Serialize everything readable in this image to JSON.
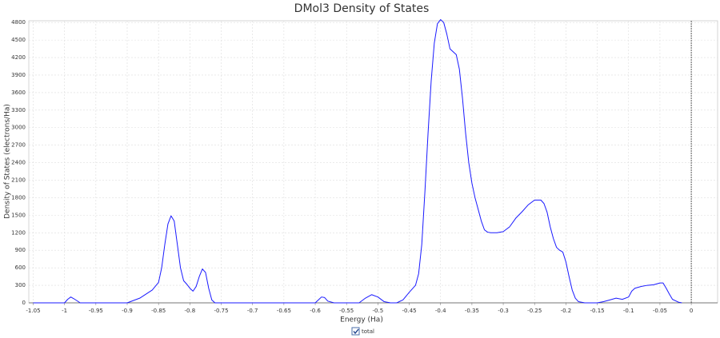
{
  "chart_data": {
    "type": "line",
    "title": "DMol3 Density of States",
    "x_label": "Energy (Ha)",
    "y_label": "Density of States (electrons/Ha)",
    "x": [
      -1.05,
      -1.0,
      -0.995,
      -0.99,
      -0.985,
      -0.975,
      -0.9,
      -0.88,
      -0.87,
      -0.86,
      -0.85,
      -0.845,
      -0.84,
      -0.835,
      -0.83,
      -0.825,
      -0.82,
      -0.815,
      -0.81,
      -0.805,
      -0.8,
      -0.795,
      -0.79,
      -0.785,
      -0.78,
      -0.775,
      -0.77,
      -0.765,
      -0.76,
      -0.6,
      -0.595,
      -0.59,
      -0.585,
      -0.58,
      -0.57,
      -0.53,
      -0.52,
      -0.51,
      -0.5,
      -0.49,
      -0.48,
      -0.47,
      -0.46,
      -0.45,
      -0.44,
      -0.435,
      -0.43,
      -0.425,
      -0.42,
      -0.415,
      -0.41,
      -0.405,
      -0.4,
      -0.395,
      -0.39,
      -0.385,
      -0.38,
      -0.375,
      -0.37,
      -0.365,
      -0.36,
      -0.355,
      -0.35,
      -0.345,
      -0.34,
      -0.335,
      -0.33,
      -0.325,
      -0.32,
      -0.31,
      -0.3,
      -0.29,
      -0.28,
      -0.27,
      -0.26,
      -0.25,
      -0.24,
      -0.235,
      -0.23,
      -0.225,
      -0.22,
      -0.215,
      -0.21,
      -0.205,
      -0.2,
      -0.195,
      -0.19,
      -0.185,
      -0.18,
      -0.17,
      -0.15,
      -0.14,
      -0.13,
      -0.12,
      -0.11,
      -0.1,
      -0.095,
      -0.09,
      -0.08,
      -0.07,
      -0.06,
      -0.05,
      -0.045,
      -0.04,
      -0.035,
      -0.03,
      -0.02,
      -0.015
    ],
    "series": [
      {
        "name": "total",
        "color": "#1a1aff",
        "values": [
          0,
          0,
          60,
          100,
          70,
          0,
          0,
          80,
          150,
          220,
          350,
          600,
          1000,
          1350,
          1490,
          1400,
          1000,
          600,
          380,
          320,
          250,
          200,
          280,
          450,
          580,
          520,
          250,
          50,
          0,
          0,
          50,
          100,
          90,
          30,
          0,
          0,
          80,
          140,
          100,
          20,
          0,
          0,
          50,
          180,
          300,
          500,
          1000,
          1900,
          2900,
          3800,
          4450,
          4780,
          4850,
          4800,
          4600,
          4350,
          4300,
          4250,
          4000,
          3500,
          2900,
          2400,
          2050,
          1800,
          1600,
          1400,
          1250,
          1210,
          1200,
          1200,
          1220,
          1300,
          1450,
          1560,
          1680,
          1760,
          1760,
          1700,
          1550,
          1300,
          1100,
          950,
          900,
          870,
          700,
          450,
          220,
          80,
          20,
          0,
          0,
          20,
          50,
          80,
          60,
          100,
          200,
          250,
          280,
          300,
          310,
          340,
          340,
          250,
          150,
          60,
          10,
          0
        ]
      }
    ],
    "xlim": [
      -1.057,
      0.042
    ],
    "xticks": [
      -1.05,
      -1,
      -0.95,
      -0.9,
      -0.85,
      -0.8,
      -0.75,
      -0.7,
      -0.65,
      -0.6,
      -0.55,
      -0.5,
      -0.45,
      -0.4,
      -0.35,
      -0.3,
      -0.25,
      -0.2,
      -0.15,
      -0.1,
      -0.05,
      0
    ],
    "ylim": [
      0,
      4830
    ],
    "yticks": [
      0,
      300,
      600,
      900,
      1200,
      1500,
      1800,
      2100,
      2400,
      2700,
      3000,
      3300,
      3600,
      3900,
      4200,
      4500,
      4800
    ],
    "reference_line_x": 0,
    "grid": true
  }
}
